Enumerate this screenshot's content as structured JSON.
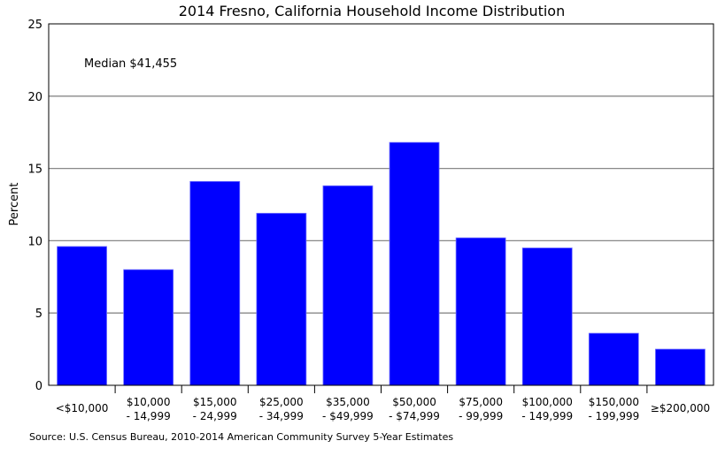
{
  "chart_data": {
    "type": "bar",
    "title": "2014 Fresno, California Household Income Distribution",
    "xlabel": "",
    "ylabel": "Percent",
    "ylim": [
      0,
      25
    ],
    "yticks": [
      0,
      5,
      10,
      15,
      20,
      25
    ],
    "grid": true,
    "annotation": "Median $41,455",
    "source": "Source: U.S. Census Bureau, 2010-2014 American Community Survey 5-Year Estimates",
    "categories": [
      [
        "<$10,000"
      ],
      [
        "$10,000",
        "- 14,999"
      ],
      [
        "$15,000",
        "- 24,999"
      ],
      [
        "$25,000",
        "- 34,999"
      ],
      [
        "$35,000",
        "- $49,999"
      ],
      [
        "$50,000",
        "- $74,999"
      ],
      [
        "$75,000",
        "- 99,999"
      ],
      [
        "$100,000",
        "- 149,999"
      ],
      [
        "$150,000",
        "- 199,999"
      ],
      [
        "≥$200,000"
      ]
    ],
    "values": [
      9.6,
      8.0,
      14.1,
      11.9,
      13.8,
      16.8,
      10.2,
      9.5,
      3.6,
      2.5
    ],
    "bar_color": "#0000ff"
  }
}
